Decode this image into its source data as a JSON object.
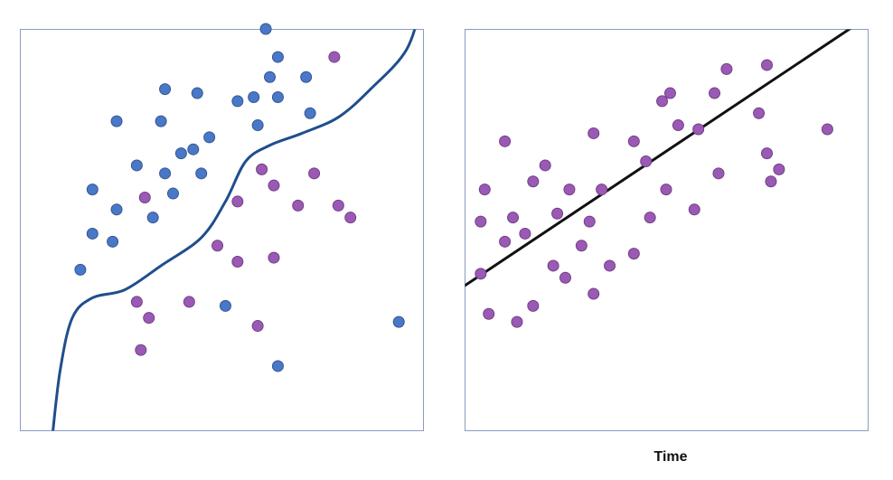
{
  "chart_data": [
    {
      "type": "scatter",
      "title": "",
      "xlabel": "",
      "ylabel": "",
      "xlim": [
        0,
        10
      ],
      "ylim": [
        0,
        10
      ],
      "grid": false,
      "series": [
        {
          "color": "#4a78c8",
          "points": [
            [
              6.1,
              10.0
            ],
            [
              6.4,
              9.3
            ],
            [
              6.2,
              8.8
            ],
            [
              7.1,
              8.8
            ],
            [
              3.6,
              8.5
            ],
            [
              4.4,
              8.4
            ],
            [
              5.4,
              8.2
            ],
            [
              5.8,
              8.3
            ],
            [
              6.4,
              8.3
            ],
            [
              2.4,
              7.7
            ],
            [
              3.5,
              7.7
            ],
            [
              5.9,
              7.6
            ],
            [
              7.2,
              7.9
            ],
            [
              4.7,
              7.3
            ],
            [
              4.3,
              7.0
            ],
            [
              4.0,
              6.9
            ],
            [
              2.9,
              6.6
            ],
            [
              3.6,
              6.4
            ],
            [
              4.5,
              6.4
            ],
            [
              1.8,
              6.0
            ],
            [
              3.8,
              5.9
            ],
            [
              2.4,
              5.5
            ],
            [
              3.3,
              5.3
            ],
            [
              1.8,
              4.9
            ],
            [
              2.3,
              4.7
            ],
            [
              1.5,
              4.0
            ],
            [
              5.1,
              3.1
            ],
            [
              9.4,
              2.7
            ],
            [
              6.4,
              1.6
            ]
          ]
        },
        {
          "color": "#9b59b6",
          "points": [
            [
              7.8,
              9.3
            ],
            [
              6.0,
              6.5
            ],
            [
              7.3,
              6.4
            ],
            [
              6.3,
              6.1
            ],
            [
              3.1,
              5.8
            ],
            [
              5.4,
              5.7
            ],
            [
              6.9,
              5.6
            ],
            [
              7.9,
              5.6
            ],
            [
              8.2,
              5.3
            ],
            [
              4.9,
              4.6
            ],
            [
              6.3,
              4.3
            ],
            [
              5.4,
              4.2
            ],
            [
              2.9,
              3.2
            ],
            [
              4.2,
              3.2
            ],
            [
              3.2,
              2.8
            ],
            [
              5.9,
              2.6
            ],
            [
              3.0,
              2.0
            ]
          ]
        }
      ],
      "decision_boundary": {
        "color": "#1f4e8c",
        "points": [
          [
            0.8,
            -0.2
          ],
          [
            1.0,
            1.5
          ],
          [
            1.3,
            2.8
          ],
          [
            1.8,
            3.3
          ],
          [
            2.6,
            3.5
          ],
          [
            3.5,
            4.1
          ],
          [
            4.5,
            4.8
          ],
          [
            5.1,
            5.7
          ],
          [
            5.6,
            6.7
          ],
          [
            6.2,
            7.1
          ],
          [
            7.0,
            7.4
          ],
          [
            7.9,
            7.8
          ],
          [
            8.7,
            8.5
          ],
          [
            9.6,
            9.5
          ],
          [
            10.0,
            10.8
          ]
        ]
      }
    },
    {
      "type": "scatter",
      "title": "",
      "xlabel": "Time",
      "ylabel": "",
      "xlim": [
        0,
        10
      ],
      "ylim": [
        0,
        10
      ],
      "grid": false,
      "series": [
        {
          "color": "#9b59b6",
          "points": [
            [
              7.5,
              9.1
            ],
            [
              6.5,
              9.0
            ],
            [
              5.1,
              8.4
            ],
            [
              6.2,
              8.4
            ],
            [
              4.9,
              8.2
            ],
            [
              7.3,
              7.9
            ],
            [
              5.3,
              7.6
            ],
            [
              5.8,
              7.5
            ],
            [
              9.0,
              7.5
            ],
            [
              3.2,
              7.4
            ],
            [
              4.2,
              7.2
            ],
            [
              1.0,
              7.2
            ],
            [
              7.5,
              6.9
            ],
            [
              4.5,
              6.7
            ],
            [
              2.0,
              6.6
            ],
            [
              7.8,
              6.5
            ],
            [
              6.3,
              6.4
            ],
            [
              7.6,
              6.2
            ],
            [
              1.7,
              6.2
            ],
            [
              0.5,
              6.0
            ],
            [
              2.6,
              6.0
            ],
            [
              3.4,
              6.0
            ],
            [
              5.0,
              6.0
            ],
            [
              5.7,
              5.5
            ],
            [
              2.3,
              5.4
            ],
            [
              1.2,
              5.3
            ],
            [
              0.4,
              5.2
            ],
            [
              3.1,
              5.2
            ],
            [
              4.6,
              5.3
            ],
            [
              1.5,
              4.9
            ],
            [
              1.0,
              4.7
            ],
            [
              2.9,
              4.6
            ],
            [
              4.2,
              4.4
            ],
            [
              2.2,
              4.1
            ],
            [
              3.6,
              4.1
            ],
            [
              0.4,
              3.9
            ],
            [
              2.5,
              3.8
            ],
            [
              3.2,
              3.4
            ],
            [
              0.6,
              2.9
            ],
            [
              1.7,
              3.1
            ],
            [
              1.3,
              2.7
            ]
          ]
        }
      ],
      "trend_line": {
        "color": "#111111",
        "points": [
          [
            0,
            3.6
          ],
          [
            10,
            10.3
          ]
        ]
      }
    }
  ]
}
